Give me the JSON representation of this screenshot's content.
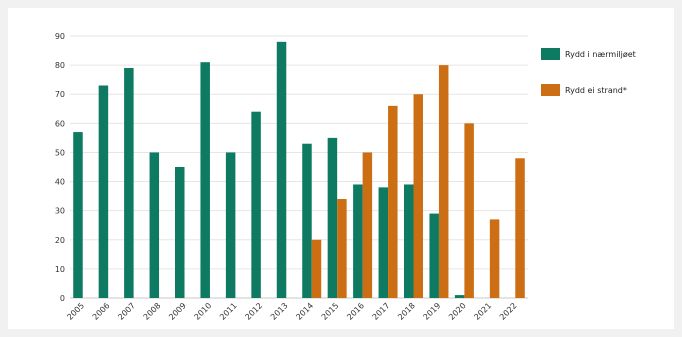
{
  "chart_data": {
    "type": "bar",
    "categories": [
      "2005",
      "2006",
      "2007",
      "2008",
      "2009",
      "2010",
      "2011",
      "2012",
      "2013",
      "2014",
      "2015",
      "2016",
      "2017",
      "2018",
      "2019",
      "2020",
      "2021",
      "2022"
    ],
    "series": [
      {
        "name": "Rydd i nærmiljøet",
        "values": [
          57,
          73,
          79,
          50,
          45,
          81,
          50,
          64,
          88,
          53,
          55,
          39,
          38,
          39,
          29,
          1,
          null,
          null
        ]
      },
      {
        "name": "Rydd ei strand*",
        "values": [
          null,
          null,
          null,
          null,
          null,
          null,
          null,
          null,
          null,
          20,
          34,
          50,
          66,
          70,
          80,
          60,
          27,
          48
        ]
      }
    ],
    "colors": [
      "#0e7a62",
      "#cc6f14"
    ],
    "yticks": [
      0,
      10,
      20,
      30,
      40,
      50,
      60,
      70,
      80,
      90
    ],
    "ylim": [
      0,
      90
    ],
    "grid": true,
    "legend_position": "right"
  }
}
